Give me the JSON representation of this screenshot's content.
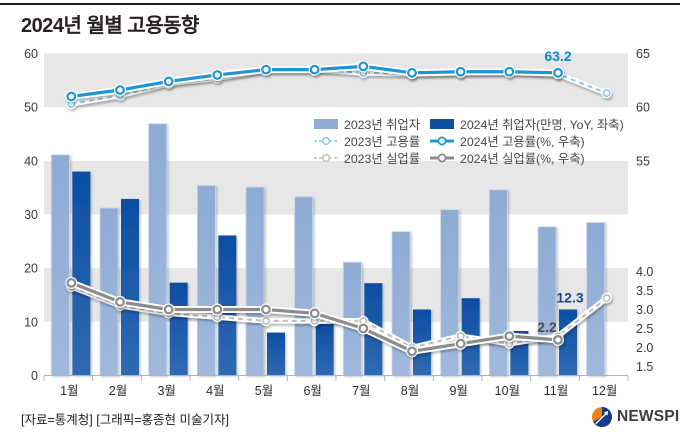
{
  "header": {
    "title": "2024년 월별 고용동향"
  },
  "footer": {
    "source": "[자료=통계청] [그래픽=홍종현 미술기자]",
    "logo_text": "NEWSPIM"
  },
  "colors": {
    "top_rule": "#1d1d1d",
    "band_gray": "#e7e7e7",
    "bar_2023_top": "#8dabd4",
    "bar_2023_bottom": "#a0b8dc",
    "bar_2023_stroke": "#c7d4ea",
    "bar_2024_top": "#0c4ea3",
    "bar_2024_bottom": "#2f6ab2",
    "line_emp_2023": "#85c9ec",
    "line_emp_2024": "#1a96d5",
    "line_unemp_2023": "#bdbdbd",
    "line_unemp_2024": "#8c8c8c",
    "axis_text": "#3a3a3a",
    "axis_line": "#b3b3b3",
    "annotation_emp_rate": "#1186cd",
    "annotation_bar": "#16489c",
    "annotation_unemp": "#4c4c4c",
    "logo_orange": "#f08119",
    "logo_navy": "#123c8a"
  },
  "legend": {
    "items": [
      {
        "label": "2023년 취업자",
        "swatch": "bar-light"
      },
      {
        "label": "2024년 취업자(만명, YoY, 좌축)",
        "swatch": "bar-dark"
      },
      {
        "label": "2023년 고용률",
        "swatch": "line-dashed-blue"
      },
      {
        "label": "2024년 고용률(%, 우축)",
        "swatch": "line-solid-blue"
      },
      {
        "label": "2023년 실업률",
        "swatch": "line-dashed-gray"
      },
      {
        "label": "2024년 실업률(%, 우축)",
        "swatch": "line-solid-gray"
      }
    ]
  },
  "chart_data": {
    "type": "bar+line combo",
    "categories": [
      "1월",
      "2월",
      "3월",
      "4월",
      "5월",
      "6월",
      "7월",
      "8월",
      "9월",
      "10월",
      "11월",
      "12월"
    ],
    "series": [
      {
        "name": "2023년 취업자",
        "type": "bar",
        "axis": "left",
        "values": [
          41.1,
          31.2,
          46.9,
          35.4,
          35.1,
          33.3,
          21.1,
          26.8,
          30.9,
          34.6,
          27.7,
          28.5
        ]
      },
      {
        "name": "2024년 취업자(만명, YoY, 좌축)",
        "type": "bar",
        "axis": "left",
        "values": [
          38.0,
          32.9,
          17.3,
          26.1,
          8.0,
          9.6,
          17.2,
          12.3,
          14.4,
          8.3,
          12.3,
          null
        ]
      },
      {
        "name": "2023년 고용률",
        "type": "line-dashed",
        "axis": "right-employment",
        "values": [
          60.3,
          61.1,
          62.2,
          62.7,
          63.5,
          63.5,
          63.2,
          63.1,
          63.2,
          63.3,
          63.1,
          61.3
        ]
      },
      {
        "name": "2024년 고용률(%, 우축)",
        "type": "line-solid",
        "axis": "right-employment",
        "values": [
          61.0,
          61.6,
          62.4,
          63.0,
          63.5,
          63.5,
          63.8,
          63.2,
          63.3,
          63.3,
          63.2,
          null
        ]
      },
      {
        "name": "2023년 실업률",
        "type": "line-dashed",
        "axis": "right-unemployment",
        "values": [
          3.6,
          3.1,
          2.9,
          2.8,
          2.7,
          2.7,
          2.7,
          2.0,
          2.3,
          2.1,
          2.3,
          3.3
        ]
      },
      {
        "name": "2024년 실업률(%, 우축)",
        "type": "line-solid",
        "axis": "right-unemployment",
        "values": [
          3.7,
          3.2,
          3.0,
          3.0,
          3.0,
          2.9,
          2.5,
          1.9,
          2.1,
          2.3,
          2.2,
          null
        ]
      }
    ],
    "left_axis": {
      "ticks": [
        0,
        10,
        20,
        30,
        40,
        50,
        60
      ],
      "range": [
        0,
        60
      ]
    },
    "right_axis_employment": {
      "ticks": [
        55,
        60,
        65
      ],
      "range_top": 65
    },
    "right_axis_unemployment": {
      "ticks": [
        1.5,
        2.0,
        2.5,
        3.0,
        3.5,
        4.0
      ]
    },
    "grid": "alternating horizontal bands",
    "legend_position": "top-right inside plot",
    "annotations": [
      {
        "text": "63.2",
        "value": 63.2,
        "month_index": 10,
        "series": "2024년 고용률",
        "kind": "emp_rate"
      },
      {
        "text": "12.3",
        "value": 12.3,
        "month_index": 10,
        "series": "2024년 취업자",
        "kind": "bar"
      },
      {
        "text": "2.2",
        "value": 2.2,
        "month_index": 10,
        "series": "2024년 실업률",
        "kind": "unemp_rate"
      }
    ]
  }
}
